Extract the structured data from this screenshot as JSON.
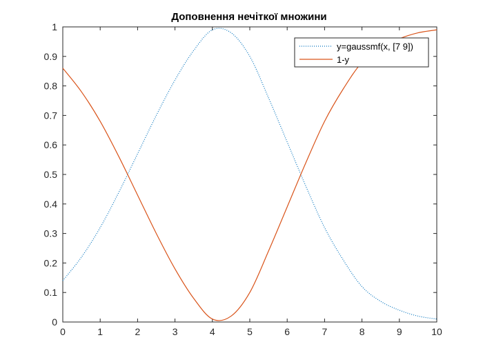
{
  "chart_data": {
    "type": "line",
    "title": "Доповнення нечіткої множини",
    "xlabel": "",
    "ylabel": "",
    "xlim": [
      0,
      10
    ],
    "ylim": [
      0,
      1
    ],
    "x_ticks": [
      0,
      1,
      2,
      3,
      4,
      5,
      6,
      7,
      8,
      9,
      10
    ],
    "y_ticks": [
      0,
      0.1,
      0.2,
      0.3,
      0.4,
      0.5,
      0.6,
      0.7,
      0.8,
      0.9,
      1
    ],
    "y_tick_labels": [
      "0",
      "0.1",
      "0.2",
      "0.3",
      "0.4",
      "0.5",
      "0.6",
      "0.7",
      "0.8",
      "0.9",
      "1"
    ],
    "grid": false,
    "legend_position": "top-right",
    "x": [
      0,
      0.5,
      1,
      1.5,
      2,
      2.5,
      3,
      3.5,
      4,
      4.5,
      5,
      5.5,
      6,
      6.5,
      7,
      7.5,
      8,
      8.5,
      9,
      9.5,
      10
    ],
    "series": [
      {
        "name": "y=gaussmf(x, [7 9])",
        "style": "dotted",
        "color": "#0072BD",
        "values": [
          0.14,
          0.22,
          0.32,
          0.44,
          0.57,
          0.7,
          0.82,
          0.92,
          0.99,
          0.98,
          0.9,
          0.76,
          0.61,
          0.46,
          0.32,
          0.21,
          0.12,
          0.07,
          0.04,
          0.02,
          0.01
        ]
      },
      {
        "name": "1-y",
        "style": "solid",
        "color": "#D95319",
        "values": [
          0.86,
          0.78,
          0.68,
          0.56,
          0.43,
          0.3,
          0.18,
          0.08,
          0.01,
          0.02,
          0.1,
          0.24,
          0.39,
          0.54,
          0.68,
          0.79,
          0.88,
          0.93,
          0.96,
          0.98,
          0.99
        ]
      }
    ]
  }
}
